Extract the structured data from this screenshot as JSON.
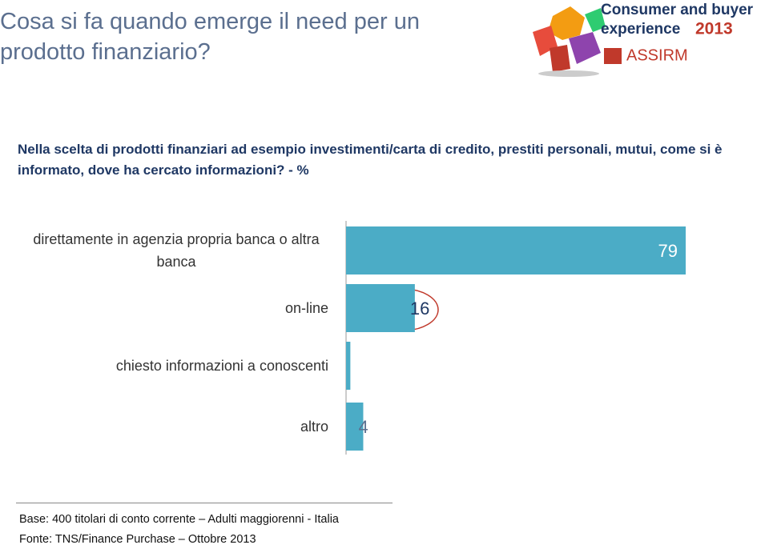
{
  "header": {
    "title": "Cosa si fa quando emerge il need per un prodotto finanziario?",
    "logo": {
      "line1": "Consumer and buyer",
      "line2": "experience",
      "year": "2013",
      "brand": "ASSIRM"
    }
  },
  "chart_data": {
    "type": "hbar",
    "title": "Nella scelta di prodotti finanziari ad esempio investimenti/carta di credito, prestiti personali, mutui, come si è informato, dove ha cercato informazioni? - %",
    "categories": [
      "direttamente in agenzia propria banca o altra banca",
      "on-line",
      "chiesto informazioni a conoscenti",
      "altro"
    ],
    "values": [
      79,
      16,
      1,
      4
    ],
    "value_labels": [
      "79",
      "16",
      null,
      "4"
    ],
    "color": "#4bacc6"
  },
  "footer": {
    "base": "Base:  400  titolari di conto corrente – Adulti maggiorenni - Italia",
    "source": "Fonte: TNS/Finance Purchase  – Ottobre 2013"
  }
}
